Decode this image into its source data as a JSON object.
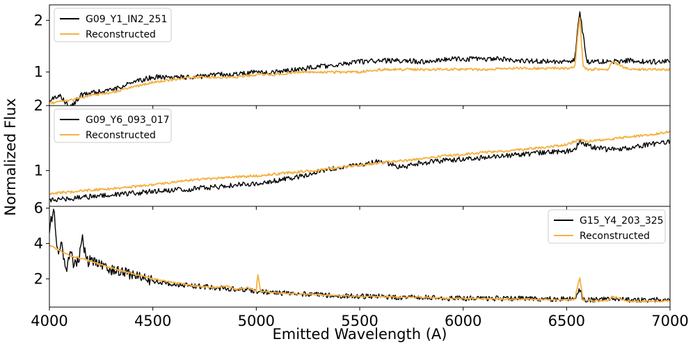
{
  "figure": {
    "xlabel": "Emitted Wavelength (A)",
    "ylabel": "Normalized Flux"
  },
  "chart_data": [
    {
      "type": "line",
      "xlim": [
        4000,
        7000
      ],
      "ylim": [
        0.35,
        2.3
      ],
      "x_ticks": [
        4000,
        4500,
        5000,
        5500,
        6000,
        6500,
        7000
      ],
      "y_ticks": [
        1,
        2
      ],
      "grid": false,
      "legend_position": "upper-left",
      "series": [
        {
          "name": "G09_Y1_IN2_251",
          "color": "#000000",
          "x": [
            4000,
            4050,
            4100,
            4150,
            4200,
            4300,
            4400,
            4500,
            4600,
            4700,
            4800,
            4900,
            5000,
            5100,
            5200,
            5300,
            5400,
            5500,
            5600,
            5700,
            5800,
            5900,
            6000,
            6100,
            6200,
            6300,
            6400,
            6500,
            6540,
            6563,
            6580,
            6600,
            6700,
            6800,
            6900,
            7000
          ],
          "y": [
            0.45,
            0.55,
            0.3,
            0.55,
            0.6,
            0.65,
            0.8,
            0.9,
            0.9,
            0.9,
            0.95,
            0.95,
            1.0,
            1.0,
            1.05,
            1.1,
            1.15,
            1.2,
            1.22,
            1.22,
            1.2,
            1.25,
            1.25,
            1.25,
            1.25,
            1.22,
            1.2,
            1.2,
            1.25,
            2.2,
            1.7,
            1.2,
            1.2,
            1.22,
            1.2,
            1.2
          ]
        },
        {
          "name": "Reconstructed",
          "color": "#F5B041",
          "x": [
            4000,
            4100,
            4200,
            4300,
            4400,
            4500,
            4600,
            4700,
            4800,
            4900,
            5000,
            5100,
            5200,
            5300,
            5400,
            5500,
            5600,
            5700,
            5800,
            5900,
            6000,
            6100,
            6200,
            6300,
            6400,
            6500,
            6540,
            6563,
            6580,
            6600,
            6700,
            6720,
            6800,
            6900,
            7000
          ],
          "y": [
            0.4,
            0.45,
            0.55,
            0.6,
            0.7,
            0.8,
            0.85,
            0.9,
            0.9,
            0.9,
            0.95,
            0.95,
            1.0,
            1.0,
            1.0,
            1.0,
            1.05,
            1.05,
            1.05,
            1.05,
            1.05,
            1.05,
            1.07,
            1.07,
            1.07,
            1.07,
            1.1,
            2.1,
            1.1,
            1.05,
            1.05,
            1.2,
            1.05,
            1.05,
            1.05
          ]
        }
      ]
    },
    {
      "type": "line",
      "xlim": [
        4000,
        7000
      ],
      "ylim": [
        0.45,
        2.0
      ],
      "x_ticks": [
        4000,
        4500,
        5000,
        5500,
        6000,
        6500,
        7000
      ],
      "y_ticks": [
        1,
        2
      ],
      "grid": false,
      "legend_position": "upper-left",
      "series": [
        {
          "name": "G09_Y6_093_017",
          "color": "#000000",
          "x": [
            4000,
            4100,
            4200,
            4300,
            4400,
            4500,
            4600,
            4700,
            4800,
            4900,
            5000,
            5100,
            5200,
            5300,
            5400,
            5500,
            5600,
            5700,
            5800,
            5900,
            6000,
            6100,
            6200,
            6300,
            6400,
            6500,
            6540,
            6563,
            6600,
            6700,
            6800,
            6900,
            7000
          ],
          "y": [
            0.55,
            0.57,
            0.6,
            0.62,
            0.65,
            0.68,
            0.7,
            0.72,
            0.75,
            0.78,
            0.8,
            0.85,
            0.9,
            0.98,
            1.05,
            1.1,
            1.15,
            1.05,
            1.12,
            1.15,
            1.18,
            1.2,
            1.23,
            1.25,
            1.28,
            1.3,
            1.32,
            1.45,
            1.38,
            1.32,
            1.35,
            1.4,
            1.45
          ]
        },
        {
          "name": "Reconstructed",
          "color": "#F5B041",
          "x": [
            4000,
            4100,
            4200,
            4300,
            4400,
            4500,
            4600,
            4700,
            4800,
            4900,
            5000,
            5100,
            5200,
            5300,
            5400,
            5500,
            5600,
            5700,
            5800,
            5900,
            6000,
            6100,
            6200,
            6300,
            6400,
            6500,
            6563,
            6600,
            6700,
            6800,
            6900,
            7000
          ],
          "y": [
            0.65,
            0.67,
            0.7,
            0.72,
            0.75,
            0.78,
            0.82,
            0.86,
            0.88,
            0.9,
            0.92,
            0.95,
            0.98,
            1.0,
            1.05,
            1.08,
            1.12,
            1.15,
            1.18,
            1.22,
            1.25,
            1.28,
            1.3,
            1.33,
            1.36,
            1.4,
            1.48,
            1.45,
            1.48,
            1.52,
            1.55,
            1.6
          ]
        }
      ]
    },
    {
      "type": "line",
      "xlim": [
        4000,
        7000
      ],
      "ylim": [
        0.4,
        6.1
      ],
      "x_ticks": [
        4000,
        4500,
        5000,
        5500,
        6000,
        6500,
        7000
      ],
      "y_ticks": [
        2,
        4,
        6
      ],
      "grid": false,
      "legend_position": "upper-right",
      "series": [
        {
          "name": "G15_Y4_203_325",
          "color": "#000000",
          "x": [
            4000,
            4020,
            4040,
            4060,
            4080,
            4100,
            4120,
            4140,
            4160,
            4180,
            4200,
            4250,
            4300,
            4350,
            4400,
            4450,
            4500,
            4600,
            4700,
            4800,
            4900,
            5000,
            5100,
            5200,
            5300,
            5400,
            5500,
            5600,
            5700,
            5800,
            5900,
            6000,
            6100,
            6200,
            6300,
            6400,
            6500,
            6540,
            6563,
            6580,
            6600,
            6700,
            6800,
            6900,
            7000
          ],
          "y": [
            4.8,
            6.0,
            3.5,
            4.0,
            2.5,
            3.5,
            2.8,
            3.0,
            4.3,
            3.0,
            3.0,
            2.8,
            2.5,
            2.4,
            2.2,
            2.0,
            1.9,
            1.7,
            1.6,
            1.5,
            1.4,
            1.3,
            1.2,
            1.15,
            1.1,
            1.05,
            1.0,
            1.0,
            0.95,
            0.95,
            0.9,
            0.9,
            0.9,
            0.88,
            0.88,
            0.85,
            0.85,
            0.9,
            1.4,
            0.85,
            0.8,
            0.85,
            0.8,
            0.8,
            0.85
          ]
        },
        {
          "name": "Reconstructed",
          "color": "#F5B041",
          "x": [
            4000,
            4100,
            4200,
            4300,
            4400,
            4500,
            4600,
            4700,
            4800,
            4860,
            4900,
            4960,
            5000,
            5007,
            5020,
            5100,
            5200,
            5300,
            5400,
            5500,
            5600,
            5700,
            5800,
            5900,
            6000,
            6100,
            6200,
            6300,
            6400,
            6500,
            6540,
            6563,
            6580,
            6600,
            6700,
            6720,
            6800,
            6900,
            7000
          ],
          "y": [
            3.9,
            3.3,
            3.0,
            2.6,
            2.3,
            2.0,
            1.8,
            1.6,
            1.5,
            1.6,
            1.4,
            1.5,
            1.3,
            2.3,
            1.3,
            1.2,
            1.15,
            1.1,
            1.05,
            1.0,
            1.0,
            0.95,
            0.95,
            0.9,
            0.9,
            0.88,
            0.85,
            0.85,
            0.82,
            0.8,
            0.85,
            2.1,
            0.8,
            0.78,
            0.75,
            1.0,
            0.72,
            0.72,
            0.75
          ]
        }
      ]
    }
  ]
}
